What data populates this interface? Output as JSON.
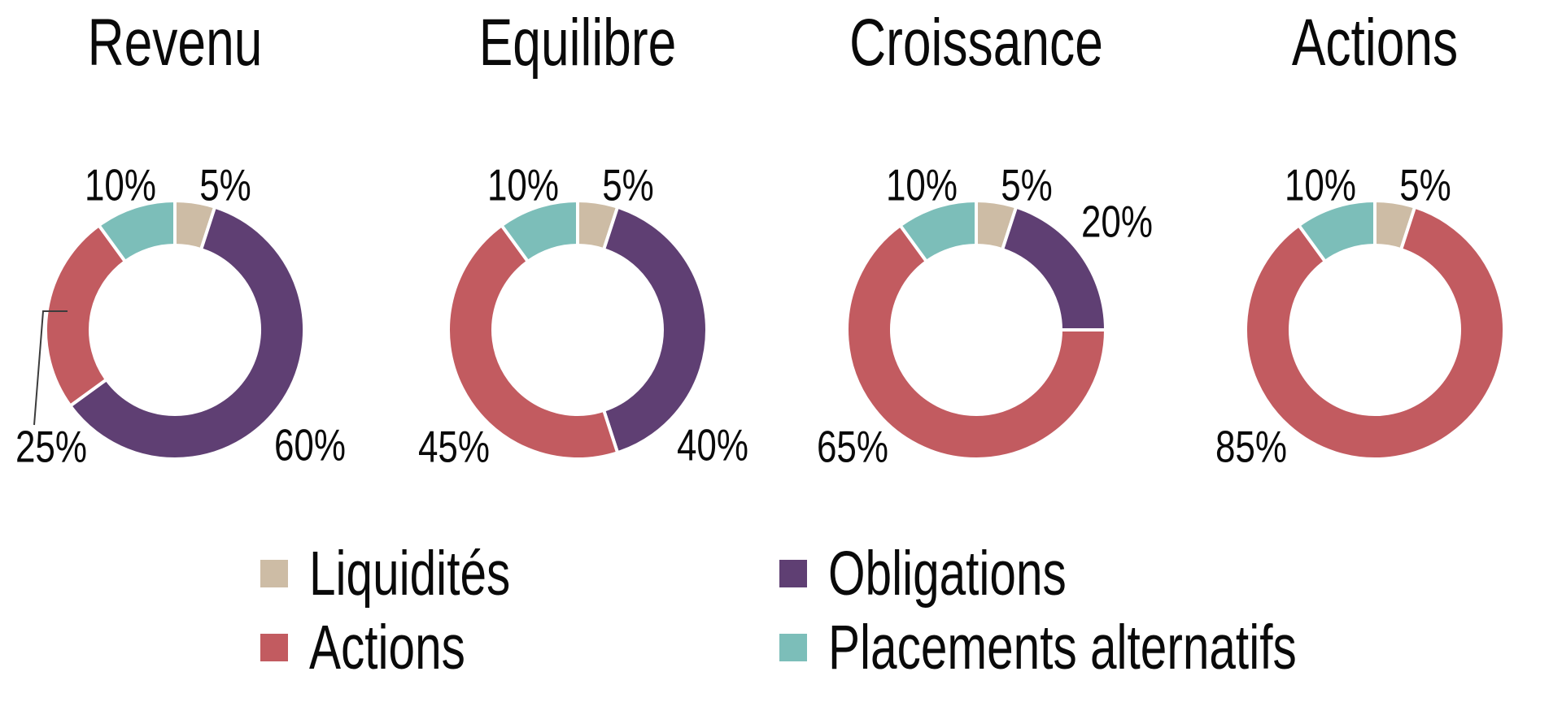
{
  "chart_data": {
    "type": "pie",
    "variant": "donut",
    "unit": "%",
    "legend_position": "bottom",
    "series_colors": {
      "Liquidités": "#CDBCA5",
      "Obligations": "#5F3F73",
      "Actions": "#C25B60",
      "Placements alternatifs": "#7CBEB9"
    },
    "leader_line_color": "#3c3c3c",
    "charts": [
      {
        "title": "Revenu",
        "slices": [
          {
            "name": "Liquidités",
            "value": 5,
            "label": "5%",
            "label_pos": "tr"
          },
          {
            "name": "Obligations",
            "value": 60,
            "label": "60%",
            "label_pos": "br"
          },
          {
            "name": "Actions",
            "value": 25,
            "label": "25%",
            "label_pos": "bl",
            "leader_line": true
          },
          {
            "name": "Placements alternatifs",
            "value": 10,
            "label": "10%",
            "label_pos": "tl"
          }
        ]
      },
      {
        "title": "Equilibre",
        "slices": [
          {
            "name": "Liquidités",
            "value": 5,
            "label": "5%",
            "label_pos": "tr"
          },
          {
            "name": "Obligations",
            "value": 40,
            "label": "40%",
            "label_pos": "br"
          },
          {
            "name": "Actions",
            "value": 45,
            "label": "45%",
            "label_pos": "bl"
          },
          {
            "name": "Placements alternatifs",
            "value": 10,
            "label": "10%",
            "label_pos": "tl"
          }
        ]
      },
      {
        "title": "Croissance",
        "slices": [
          {
            "name": "Liquidités",
            "value": 5,
            "label": "5%",
            "label_pos": "tr"
          },
          {
            "name": "Obligations",
            "value": 20,
            "label": "20%",
            "label_pos": "r"
          },
          {
            "name": "Actions",
            "value": 65,
            "label": "65%",
            "label_pos": "bl"
          },
          {
            "name": "Placements alternatifs",
            "value": 10,
            "label": "10%",
            "label_pos": "tl"
          }
        ]
      },
      {
        "title": "Actions",
        "slices": [
          {
            "name": "Liquidités",
            "value": 5,
            "label": "5%",
            "label_pos": "tr"
          },
          {
            "name": "Actions",
            "value": 85,
            "label": "85%",
            "label_pos": "bl"
          },
          {
            "name": "Placements alternatifs",
            "value": 10,
            "label": "10%",
            "label_pos": "tl"
          }
        ]
      }
    ],
    "legend": {
      "columns": [
        {
          "items": [
            {
              "label": "Liquidités"
            },
            {
              "label": "Actions"
            }
          ]
        },
        {
          "items": [
            {
              "label": "Obligations"
            },
            {
              "label": "Placements alternatifs"
            }
          ]
        }
      ]
    }
  }
}
